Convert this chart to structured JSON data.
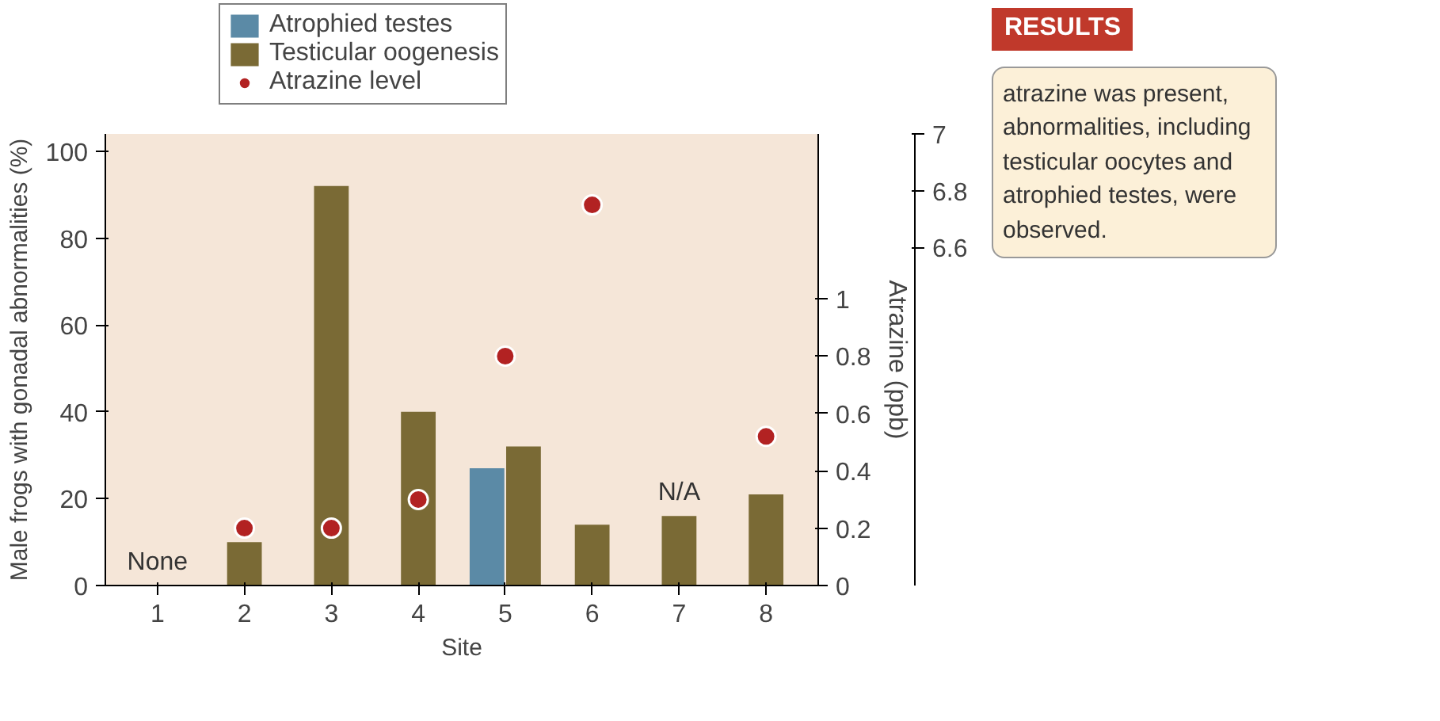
{
  "chart_data": {
    "type": "bar",
    "categories": [
      "1",
      "2",
      "3",
      "4",
      "5",
      "6",
      "7",
      "8"
    ],
    "xlabel": "Site",
    "ylabel": "Male frogs with gonadal abnormalities (%)",
    "y2label": "Atrazine (ppb)",
    "series": [
      {
        "name": "Atrophied testes",
        "color": "#5b8aa6",
        "values": [
          null,
          null,
          null,
          null,
          27,
          null,
          null,
          null
        ]
      },
      {
        "name": "Testicular oogenesis",
        "color": "#7a6a35",
        "values": [
          0,
          10,
          92,
          40,
          32,
          14,
          16,
          21
        ]
      },
      {
        "name": "Atrazine level",
        "type": "scatter",
        "axis": "y2",
        "color": "#b22222",
        "values": [
          null,
          0.2,
          0.2,
          0.3,
          0.8,
          null,
          null,
          0.52
        ]
      },
      {
        "type": "scatter",
        "axis": "y3",
        "color": "#b22222",
        "values": [
          null,
          null,
          null,
          null,
          null,
          6.75,
          null,
          null
        ]
      }
    ],
    "ylim": [
      0,
      104
    ],
    "yticks": [
      0,
      20,
      40,
      60,
      80,
      100
    ],
    "y2lim": [
      0,
      1.575
    ],
    "y2ticks": [
      0,
      0.2,
      0.4,
      0.6,
      0.8,
      1.0
    ],
    "y3lim": [
      5.41,
      7.0
    ],
    "y3ticks": [
      6.6,
      6.8,
      7.0
    ],
    "marker": "circle",
    "grid": false,
    "legend": "top left",
    "annotations": [
      {
        "text": "None",
        "x": "1",
        "y": 0
      },
      {
        "text": "N/A",
        "x": "7",
        "y": 16
      },
      "RESULTS",
      "atrazine was present, abnormalities, including testicular oocytes and atrophied testes, were observed."
    ]
  }
}
